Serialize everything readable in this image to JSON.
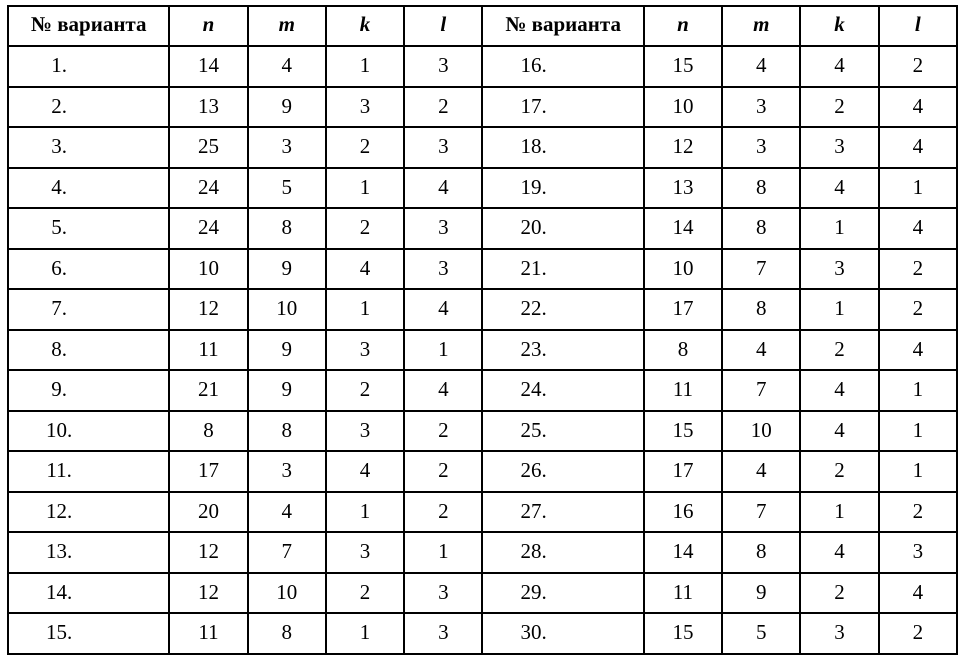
{
  "page": {
    "background_color": "#ffffff",
    "border_color": "#000000",
    "text_color": "#000000"
  },
  "table": {
    "header": {
      "variant_label": "№ варианта",
      "columns": [
        "n",
        "m",
        "k",
        "l"
      ]
    },
    "rows": [
      {
        "left": {
          "num": "1.",
          "n": "14",
          "m": "4",
          "k": "1",
          "l": "3"
        },
        "right": {
          "num": "16.",
          "n": "15",
          "m": "4",
          "k": "4",
          "l": "2"
        }
      },
      {
        "left": {
          "num": "2.",
          "n": "13",
          "m": "9",
          "k": "3",
          "l": "2"
        },
        "right": {
          "num": "17.",
          "n": "10",
          "m": "3",
          "k": "2",
          "l": "4"
        }
      },
      {
        "left": {
          "num": "3.",
          "n": "25",
          "m": "3",
          "k": "2",
          "l": "3"
        },
        "right": {
          "num": "18.",
          "n": "12",
          "m": "3",
          "k": "3",
          "l": "4"
        }
      },
      {
        "left": {
          "num": "4.",
          "n": "24",
          "m": "5",
          "k": "1",
          "l": "4"
        },
        "right": {
          "num": "19.",
          "n": "13",
          "m": "8",
          "k": "4",
          "l": "1"
        }
      },
      {
        "left": {
          "num": "5.",
          "n": "24",
          "m": "8",
          "k": "2",
          "l": "3"
        },
        "right": {
          "num": "20.",
          "n": "14",
          "m": "8",
          "k": "1",
          "l": "4"
        }
      },
      {
        "left": {
          "num": "6.",
          "n": "10",
          "m": "9",
          "k": "4",
          "l": "3"
        },
        "right": {
          "num": "21.",
          "n": "10",
          "m": "7",
          "k": "3",
          "l": "2"
        }
      },
      {
        "left": {
          "num": "7.",
          "n": "12",
          "m": "10",
          "k": "1",
          "l": "4"
        },
        "right": {
          "num": "22.",
          "n": "17",
          "m": "8",
          "k": "1",
          "l": "2"
        }
      },
      {
        "left": {
          "num": "8.",
          "n": "11",
          "m": "9",
          "k": "3",
          "l": "1"
        },
        "right": {
          "num": "23.",
          "n": "8",
          "m": "4",
          "k": "2",
          "l": "4"
        }
      },
      {
        "left": {
          "num": "9.",
          "n": "21",
          "m": "9",
          "k": "2",
          "l": "4"
        },
        "right": {
          "num": "24.",
          "n": "11",
          "m": "7",
          "k": "4",
          "l": "1"
        }
      },
      {
        "left": {
          "num": "10.",
          "n": "8",
          "m": "8",
          "k": "3",
          "l": "2"
        },
        "right": {
          "num": "25.",
          "n": "15",
          "m": "10",
          "k": "4",
          "l": "1"
        }
      },
      {
        "left": {
          "num": "11.",
          "n": "17",
          "m": "3",
          "k": "4",
          "l": "2"
        },
        "right": {
          "num": "26.",
          "n": "17",
          "m": "4",
          "k": "2",
          "l": "1"
        }
      },
      {
        "left": {
          "num": "12.",
          "n": "20",
          "m": "4",
          "k": "1",
          "l": "2"
        },
        "right": {
          "num": "27.",
          "n": "16",
          "m": "7",
          "k": "1",
          "l": "2"
        }
      },
      {
        "left": {
          "num": "13.",
          "n": "12",
          "m": "7",
          "k": "3",
          "l": "1"
        },
        "right": {
          "num": "28.",
          "n": "14",
          "m": "8",
          "k": "4",
          "l": "3"
        }
      },
      {
        "left": {
          "num": "14.",
          "n": "12",
          "m": "10",
          "k": "2",
          "l": "3"
        },
        "right": {
          "num": "29.",
          "n": "11",
          "m": "9",
          "k": "2",
          "l": "4"
        }
      },
      {
        "left": {
          "num": "15.",
          "n": "11",
          "m": "8",
          "k": "1",
          "l": "3"
        },
        "right": {
          "num": "30.",
          "n": "15",
          "m": "5",
          "k": "3",
          "l": "2"
        }
      }
    ]
  }
}
